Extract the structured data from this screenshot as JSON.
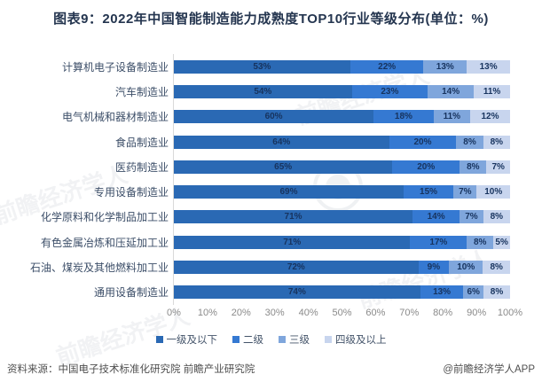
{
  "header": {
    "title": "图表9：2022年中国智能制造能力成熟度TOP10行业等级分布(单位：%)"
  },
  "chart_data": {
    "type": "bar",
    "orientation": "horizontal",
    "stacked": true,
    "value_suffix": "%",
    "title": "图表9：2022年中国智能制造能力成熟度TOP10行业等级分布(单位：%)",
    "categories": [
      "计算机电子设备制造业",
      "汽车制造业",
      "电气机械和器材制造业",
      "食品制造业",
      "医药制造业",
      "专用设备制造业",
      "化学原料和化学制品加工业",
      "有色金属冶炼和压延加工业",
      "石油、煤炭及其他燃料加工业",
      "通用设备制造业"
    ],
    "series": [
      {
        "name": "一级及以下",
        "color": "#2A69B4",
        "values": [
          53,
          54,
          60,
          64,
          65,
          69,
          71,
          71,
          72,
          74
        ]
      },
      {
        "name": "二级",
        "color": "#3579D2",
        "values": [
          22,
          23,
          18,
          20,
          20,
          15,
          14,
          17,
          9,
          13
        ]
      },
      {
        "name": "三级",
        "color": "#7FA6DC",
        "values": [
          13,
          14,
          11,
          8,
          8,
          7,
          7,
          8,
          10,
          6
        ]
      },
      {
        "name": "四级及以上",
        "color": "#C8D5EE",
        "values": [
          13,
          11,
          12,
          8,
          7,
          10,
          8,
          5,
          8,
          8
        ]
      }
    ],
    "x_ticks": [
      "0%",
      "10%",
      "20%",
      "30%",
      "40%",
      "50%",
      "60%",
      "70%",
      "80%",
      "90%",
      "100%"
    ],
    "xlim": [
      0,
      100
    ],
    "grid": false,
    "legend_position": "bottom"
  },
  "footer": {
    "source": "资料来源：中国电子技术标准化研究院 前瞻产业研究院",
    "credit": "@前瞻经济学人APP"
  },
  "watermark": {
    "text": "前瞻经济学人"
  }
}
